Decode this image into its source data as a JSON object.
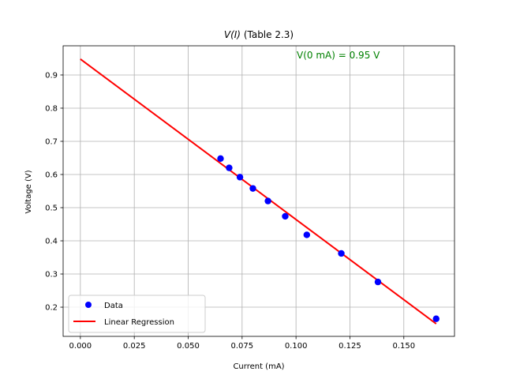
{
  "chart_data": {
    "type": "scatter",
    "title_italic": "V(I)",
    "title_rest": " (Table 2.3)",
    "xlabel": "Current (mA)",
    "ylabel": "Voltage (V)",
    "xlim": [
      -0.008,
      0.1735
    ],
    "ylim": [
      0.112,
      0.988
    ],
    "xticks": [
      0.0,
      0.025,
      0.05,
      0.075,
      0.1,
      0.125,
      0.15
    ],
    "xtick_labels": [
      "0.000",
      "0.025",
      "0.050",
      "0.075",
      "0.100",
      "0.125",
      "0.150"
    ],
    "yticks": [
      0.2,
      0.3,
      0.4,
      0.5,
      0.6,
      0.7,
      0.8,
      0.9
    ],
    "ytick_labels": [
      "0.2",
      "0.3",
      "0.4",
      "0.5",
      "0.6",
      "0.7",
      "0.8",
      "0.9"
    ],
    "grid": true,
    "legend_position": "lower-left",
    "series": [
      {
        "name": "Data",
        "kind": "scatter",
        "color": "#0000ff",
        "x": [
          0.065,
          0.069,
          0.074,
          0.08,
          0.087,
          0.095,
          0.105,
          0.121,
          0.138,
          0.165
        ],
        "y": [
          0.648,
          0.62,
          0.592,
          0.558,
          0.52,
          0.474,
          0.418,
          0.362,
          0.276,
          0.165
        ]
      },
      {
        "name": "Linear Regression",
        "kind": "line",
        "color": "#ff0000",
        "x": [
          0.0,
          0.165
        ],
        "y": [
          0.948,
          0.15
        ]
      }
    ],
    "annotation": {
      "text": "V(0 mA) = 0.95 V",
      "color": "#008000"
    }
  }
}
